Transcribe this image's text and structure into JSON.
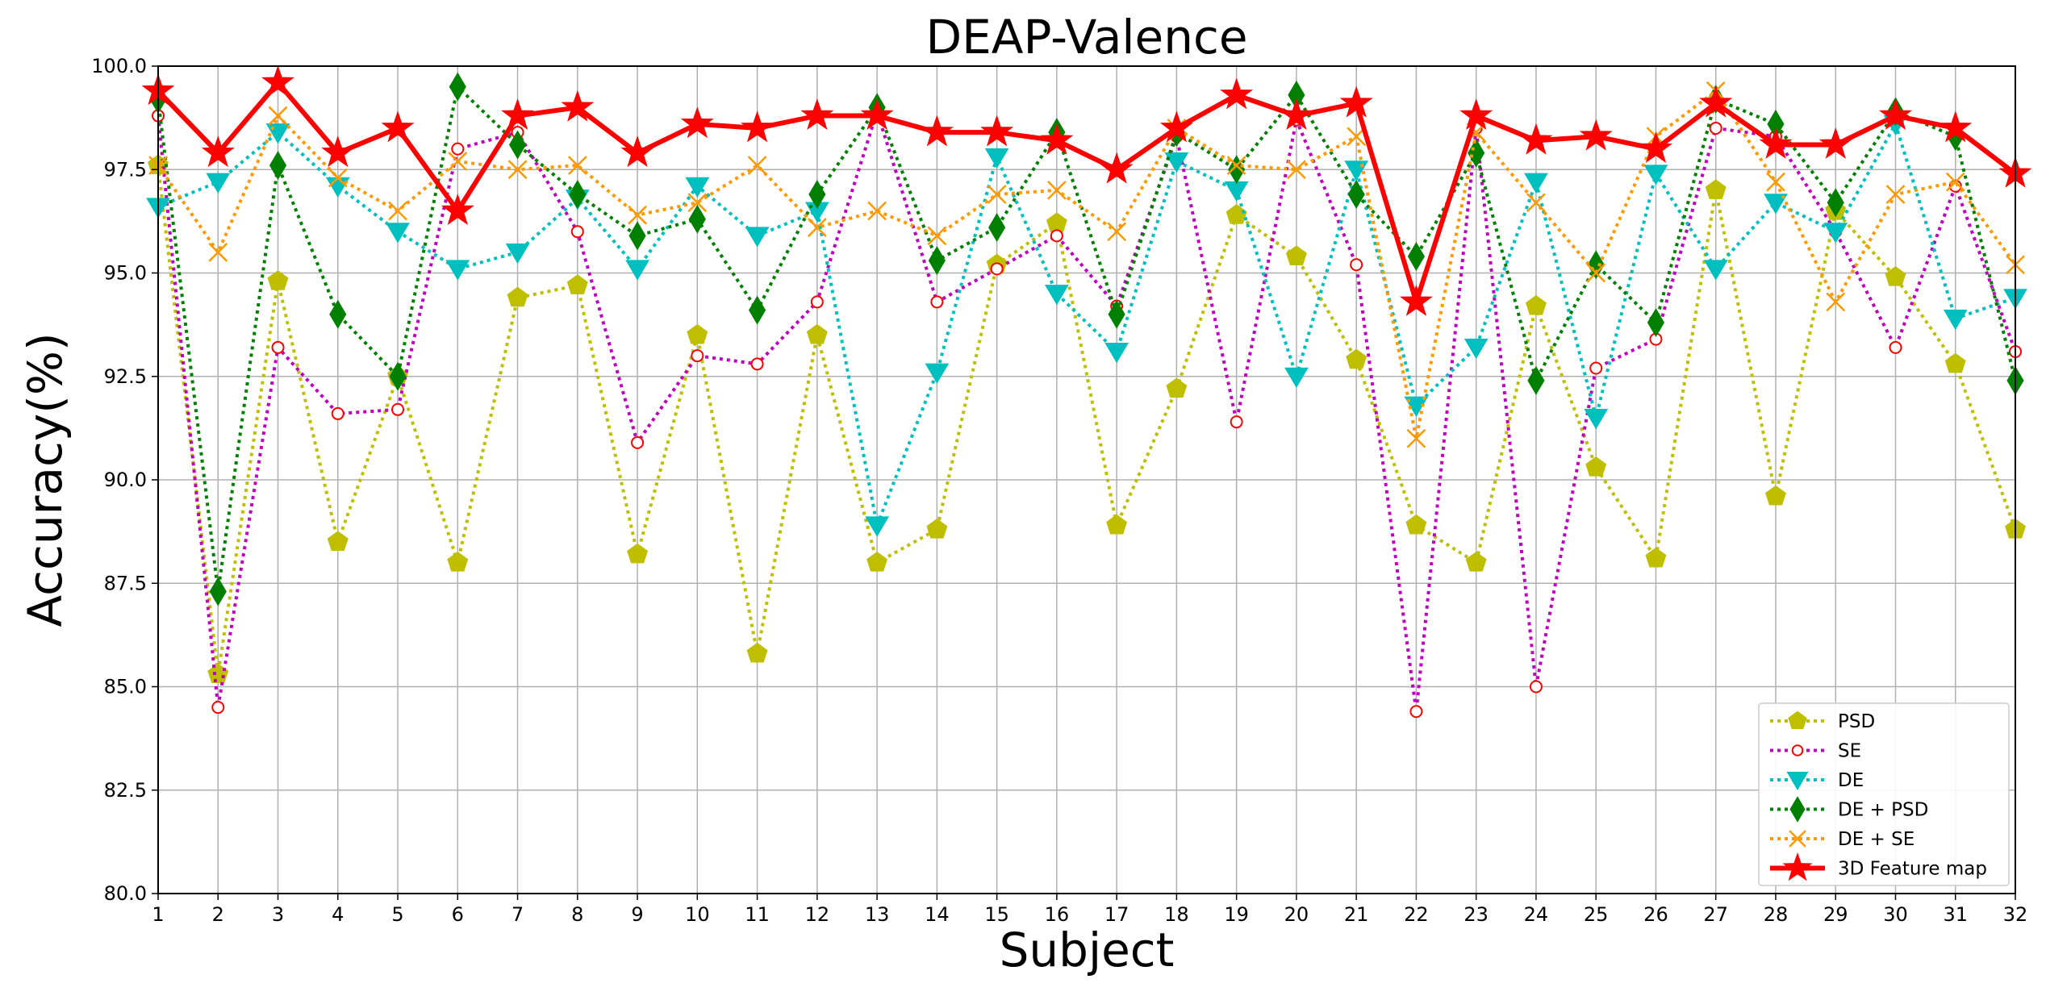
{
  "chart_data": {
    "type": "line",
    "title": "DEAP-Valence",
    "xlabel": "Subject",
    "ylabel": "Accuracy(%)",
    "x": [
      1,
      2,
      3,
      4,
      5,
      6,
      7,
      8,
      9,
      10,
      11,
      12,
      13,
      14,
      15,
      16,
      17,
      18,
      19,
      20,
      21,
      22,
      23,
      24,
      25,
      26,
      27,
      28,
      29,
      30,
      31,
      32
    ],
    "xlim": [
      1,
      32
    ],
    "ylim": [
      80.0,
      100.0
    ],
    "yticks": [
      "80.0",
      "82.5",
      "85.0",
      "87.5",
      "90.0",
      "92.5",
      "95.0",
      "97.5",
      "100.0"
    ],
    "grid": true,
    "legend_position": "lower-right",
    "series": [
      {
        "name": "PSD",
        "color": "#bfbf00",
        "marker": "pentagon",
        "linestyle": "dotted",
        "values": [
          97.6,
          85.3,
          94.8,
          88.5,
          92.5,
          88.0,
          94.4,
          94.7,
          88.2,
          93.5,
          85.8,
          93.5,
          88.0,
          88.8,
          95.2,
          96.2,
          88.9,
          92.2,
          96.4,
          95.4,
          92.9,
          88.9,
          88.0,
          94.2,
          90.3,
          88.1,
          97.0,
          89.6,
          96.5,
          94.9,
          92.8,
          88.8
        ]
      },
      {
        "name": "SE",
        "color": "#bf00bf",
        "marker": "circle",
        "linestyle": "dotted",
        "values": [
          98.8,
          84.5,
          93.2,
          91.6,
          91.7,
          98.0,
          98.4,
          96.0,
          90.9,
          93.0,
          92.8,
          94.3,
          98.9,
          94.3,
          95.1,
          95.9,
          94.2,
          98.3,
          91.4,
          98.7,
          95.2,
          84.4,
          98.5,
          85.0,
          92.7,
          93.4,
          98.5,
          98.3,
          96.0,
          93.2,
          97.1,
          93.1
        ]
      },
      {
        "name": "DE",
        "color": "#00bfbf",
        "marker": "triangle-down",
        "linestyle": "dotted",
        "values": [
          96.6,
          97.2,
          98.4,
          97.1,
          96.0,
          95.1,
          95.5,
          96.8,
          95.1,
          97.1,
          95.9,
          96.5,
          88.9,
          92.6,
          97.8,
          94.5,
          93.1,
          97.7,
          97.0,
          92.5,
          97.5,
          91.8,
          93.2,
          97.2,
          91.5,
          97.4,
          95.1,
          96.7,
          96.0,
          98.6,
          93.9,
          94.4
        ]
      },
      {
        "name": "DE + PSD",
        "color": "#008000",
        "marker": "diamond",
        "linestyle": "dotted",
        "values": [
          99.2,
          87.3,
          97.6,
          94.0,
          92.5,
          99.5,
          98.1,
          96.9,
          95.9,
          96.3,
          94.1,
          96.9,
          99.0,
          95.3,
          96.1,
          98.4,
          94.0,
          98.4,
          97.5,
          99.3,
          96.9,
          95.4,
          97.9,
          92.4,
          95.2,
          93.8,
          99.2,
          98.6,
          96.7,
          98.9,
          98.3,
          92.4
        ]
      },
      {
        "name": "DE + SE",
        "color": "#ff9900",
        "marker": "x",
        "linestyle": "dotted",
        "values": [
          97.6,
          95.5,
          98.8,
          97.3,
          96.5,
          97.7,
          97.5,
          97.6,
          96.4,
          96.7,
          97.6,
          96.1,
          96.5,
          95.9,
          96.9,
          97.0,
          96.0,
          98.5,
          97.6,
          97.5,
          98.3,
          91.0,
          98.4,
          96.7,
          95.0,
          98.3,
          99.4,
          97.2,
          94.3,
          96.9,
          97.2,
          95.2
        ]
      },
      {
        "name": "3D Feature map",
        "color": "#ff0000",
        "marker": "star",
        "linestyle": "solid",
        "values": [
          99.4,
          97.9,
          99.6,
          97.9,
          98.5,
          96.5,
          98.8,
          99.0,
          97.9,
          98.6,
          98.5,
          98.8,
          98.8,
          98.4,
          98.4,
          98.2,
          97.5,
          98.5,
          99.3,
          98.8,
          99.1,
          94.3,
          98.8,
          98.2,
          98.3,
          98.0,
          99.1,
          98.1,
          98.1,
          98.8,
          98.5,
          97.4
        ]
      }
    ]
  }
}
